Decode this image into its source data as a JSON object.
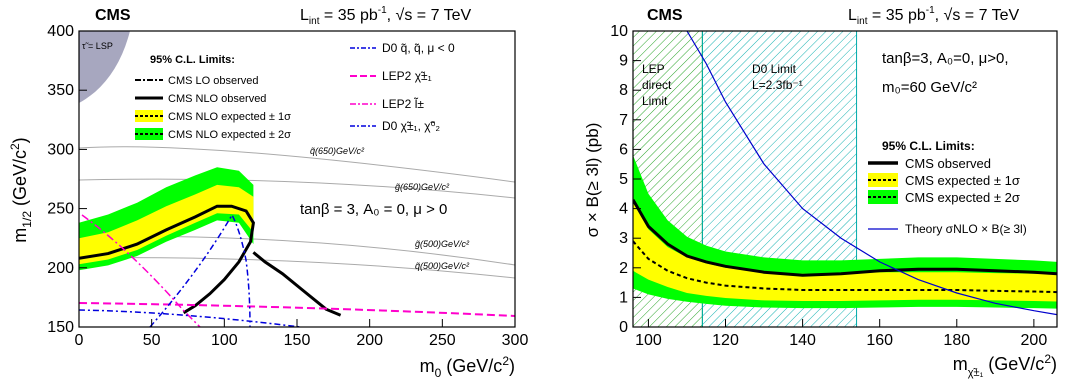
{
  "chart_data": [
    {
      "type": "line",
      "experiment": "CMS",
      "lumi_label": "L",
      "lumi_sub": "int",
      "lumi_value": " = 35 pb",
      "lumi_exp": "-1",
      "energy": ",  √s = 7 TeV",
      "xlabel": "m",
      "xlabel_sub": "0",
      "xlabel_unit": "  (GeV/c",
      "xlabel_unit_end": ")",
      "ylabel": "m",
      "ylabel_sub": "1/2",
      "ylabel_unit": "  (GeV/c",
      "ylabel_unit_end": ")",
      "xlim": [
        0,
        300
      ],
      "ylim": [
        150,
        400
      ],
      "xticks": [
        "0",
        "50",
        "100",
        "150",
        "200",
        "250",
        "300"
      ],
      "yticks": [
        "150",
        "200",
        "250",
        "300",
        "350",
        "400"
      ],
      "excluded_region_label": "τ̃ = LSP",
      "legend_title": "95% C.L. Limits:",
      "legend": [
        {
          "label": "CMS LO observed",
          "style": "dash-dot"
        },
        {
          "label": "CMS NLO observed",
          "style": "solid-thick"
        },
        {
          "label": "CMS NLO expected ± 1σ",
          "color": "#ffff00"
        },
        {
          "label": "CMS NLO expected ± 2σ",
          "color": "#00ff00"
        }
      ],
      "legend_right": [
        {
          "label": "D0  q̃, q̃,  μ < 0",
          "color": "#0000dd",
          "style": "dash-dot"
        },
        {
          "label": "LEP2  χ̃±₁",
          "color": "#ff00cc",
          "style": "dashed"
        },
        {
          "label": "LEP2  l̃±",
          "color": "#ff00cc",
          "style": "dash-dot"
        },
        {
          "label": "D0  χ̃±₁, χ̃⁰₂",
          "color": "#0000dd",
          "style": "dash-dot"
        }
      ],
      "annotation": "tanβ = 3,  A₀ = 0,  μ > 0",
      "iso_labels": [
        "q̃(650)GeV/c²",
        "g̃(650)GeV/c²",
        "g̃(500)GeV/c²",
        "q̃(500)GeV/c²"
      ],
      "series": [
        {
          "name": "CMS NLO observed",
          "x": [
            0,
            20,
            40,
            60,
            80,
            95,
            105,
            115,
            120,
            118,
            110,
            100,
            90,
            80,
            72
          ],
          "y": [
            208,
            212,
            220,
            232,
            243,
            252,
            252,
            248,
            238,
            222,
            205,
            190,
            178,
            168,
            162
          ]
        },
        {
          "name": "CMS NLO observed (right branch)",
          "x": [
            120,
            128,
            140,
            155,
            170,
            180
          ],
          "y": [
            213,
            205,
            195,
            180,
            165,
            160
          ]
        }
      ],
      "expected_1sigma": {
        "x": [
          0,
          20,
          40,
          60,
          80,
          95,
          110,
          120
        ],
        "y_low": [
          203,
          207,
          215,
          227,
          238,
          246,
          245,
          230
        ],
        "y_high": [
          225,
          230,
          240,
          252,
          262,
          270,
          268,
          260
        ]
      },
      "expected_2sigma": {
        "x": [
          0,
          20,
          40,
          60,
          80,
          95,
          110,
          120
        ],
        "y_low": [
          198,
          202,
          210,
          222,
          232,
          240,
          238,
          220
        ],
        "y_high": [
          238,
          245,
          255,
          268,
          278,
          285,
          282,
          270
        ]
      }
    },
    {
      "type": "line",
      "experiment": "CMS",
      "lumi_label": "L",
      "lumi_sub": "int",
      "lumi_value": " = 35 pb",
      "lumi_exp": "-1",
      "energy": ",  √s = 7 TeV",
      "xlabel": "m",
      "xlabel_sub": "χ̃±₁",
      "xlabel_unit": "  (GeV/c",
      "xlabel_unit_end": ")",
      "ylabel": "σ × B(≥ 3l)  (pb)",
      "xlim": [
        96,
        206
      ],
      "ylim": [
        0,
        10
      ],
      "xticks": [
        "100",
        "120",
        "140",
        "160",
        "180",
        "200"
      ],
      "yticks": [
        "0",
        "1",
        "2",
        "3",
        "4",
        "5",
        "6",
        "7",
        "8",
        "9",
        "10"
      ],
      "regions": [
        {
          "label_lines": [
            "LEP",
            "direct",
            "Limit"
          ],
          "x": [
            96,
            114
          ],
          "color": "#00aa00"
        },
        {
          "label_lines": [
            "D0 Limit",
            "L=2.3fb⁻¹"
          ],
          "x": [
            114,
            154
          ],
          "color": "#00aaaa"
        }
      ],
      "annotation_lines": [
        "tanβ=3, A₀=0, μ>0,",
        "m₀=60 GeV/c²"
      ],
      "legend_title": "95% C.L. Limits:",
      "legend": [
        {
          "label": "CMS observed",
          "style": "solid-thick"
        },
        {
          "label": "CMS expected ± 1σ",
          "color": "#ffff00"
        },
        {
          "label": "CMS expected ± 2σ",
          "color": "#00ff00"
        },
        {
          "label": "Theory σNLO × B(≥ 3l)",
          "color": "#0000cc"
        }
      ],
      "series": [
        {
          "name": "CMS observed",
          "x": [
            96,
            100,
            105,
            110,
            115,
            120,
            130,
            140,
            150,
            160,
            170,
            180,
            190,
            200,
            206
          ],
          "y": [
            4.3,
            3.4,
            2.8,
            2.4,
            2.2,
            2.05,
            1.85,
            1.75,
            1.8,
            1.9,
            1.95,
            1.95,
            1.9,
            1.85,
            1.8
          ]
        },
        {
          "name": "CMS expected",
          "x": [
            96,
            100,
            105,
            110,
            115,
            120,
            130,
            140,
            150,
            160,
            170,
            180,
            190,
            200,
            206
          ],
          "y": [
            2.9,
            2.3,
            1.9,
            1.65,
            1.5,
            1.4,
            1.3,
            1.25,
            1.25,
            1.25,
            1.25,
            1.25,
            1.22,
            1.2,
            1.18
          ]
        },
        {
          "name": "Theory σNLO × B(≥ 3l)",
          "x": [
            110,
            115,
            120,
            130,
            140,
            150,
            160,
            170,
            180,
            190,
            200,
            206
          ],
          "y": [
            10,
            8.9,
            7.6,
            5.5,
            4.0,
            3.0,
            2.2,
            1.6,
            1.15,
            0.8,
            0.55,
            0.42
          ]
        }
      ],
      "expected_1sigma": {
        "x": [
          96,
          100,
          105,
          110,
          115,
          120,
          130,
          140,
          150,
          160,
          170,
          180,
          190,
          200,
          206
        ],
        "y_low": [
          1.9,
          1.6,
          1.35,
          1.15,
          1.05,
          0.98,
          0.9,
          0.88,
          0.88,
          0.9,
          0.92,
          0.92,
          0.9,
          0.88,
          0.86
        ],
        "y_high": [
          4.2,
          3.3,
          2.7,
          2.35,
          2.15,
          2.0,
          1.85,
          1.8,
          1.8,
          1.85,
          1.85,
          1.85,
          1.82,
          1.8,
          1.78
        ]
      },
      "expected_2sigma": {
        "x": [
          96,
          100,
          105,
          110,
          115,
          120,
          130,
          140,
          150,
          160,
          170,
          180,
          190,
          200,
          206
        ],
        "y_low": [
          1.3,
          1.1,
          0.95,
          0.85,
          0.78,
          0.72,
          0.66,
          0.64,
          0.64,
          0.66,
          0.68,
          0.68,
          0.66,
          0.64,
          0.62
        ],
        "y_high": [
          5.8,
          4.5,
          3.6,
          3.05,
          2.75,
          2.55,
          2.35,
          2.25,
          2.25,
          2.3,
          2.35,
          2.35,
          2.3,
          2.25,
          2.2
        ]
      }
    }
  ]
}
